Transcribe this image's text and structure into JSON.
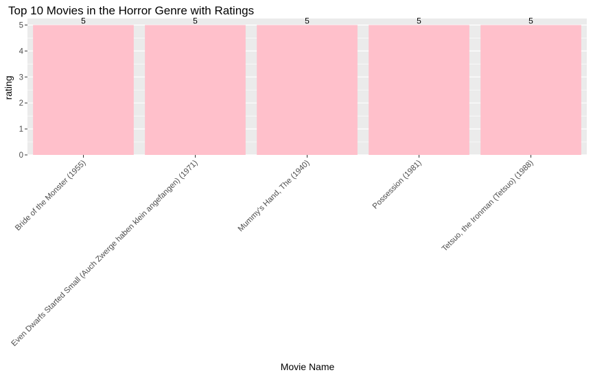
{
  "chart_data": {
    "type": "bar",
    "title": "Top 10 Movies in the Horror Genre with Ratings",
    "xlabel": "Movie Name",
    "ylabel": "rating",
    "categories": [
      "Bride of the Monster (1955)",
      "Even Dwarfs Started Small (Auch Zwerge haben klein angefangen) (1971)",
      "Mummy's Hand, The (1940)",
      "Possession (1981)",
      "Tetsuo, the Ironman (Tetsuo) (1988)"
    ],
    "values": [
      5,
      5,
      5,
      5,
      5
    ],
    "data_labels": [
      "5",
      "5",
      "5",
      "5",
      "5"
    ],
    "ylim": [
      0,
      5.25
    ],
    "yticks": [
      0,
      1,
      2,
      3,
      4,
      5
    ],
    "ytick_labels": [
      "0",
      "1",
      "2",
      "3",
      "4",
      "5"
    ],
    "grid": true,
    "legend": "none",
    "colors": {
      "bar": "#ffc0cb",
      "panel": "#ebebeb",
      "grid": "#ffffff"
    }
  }
}
